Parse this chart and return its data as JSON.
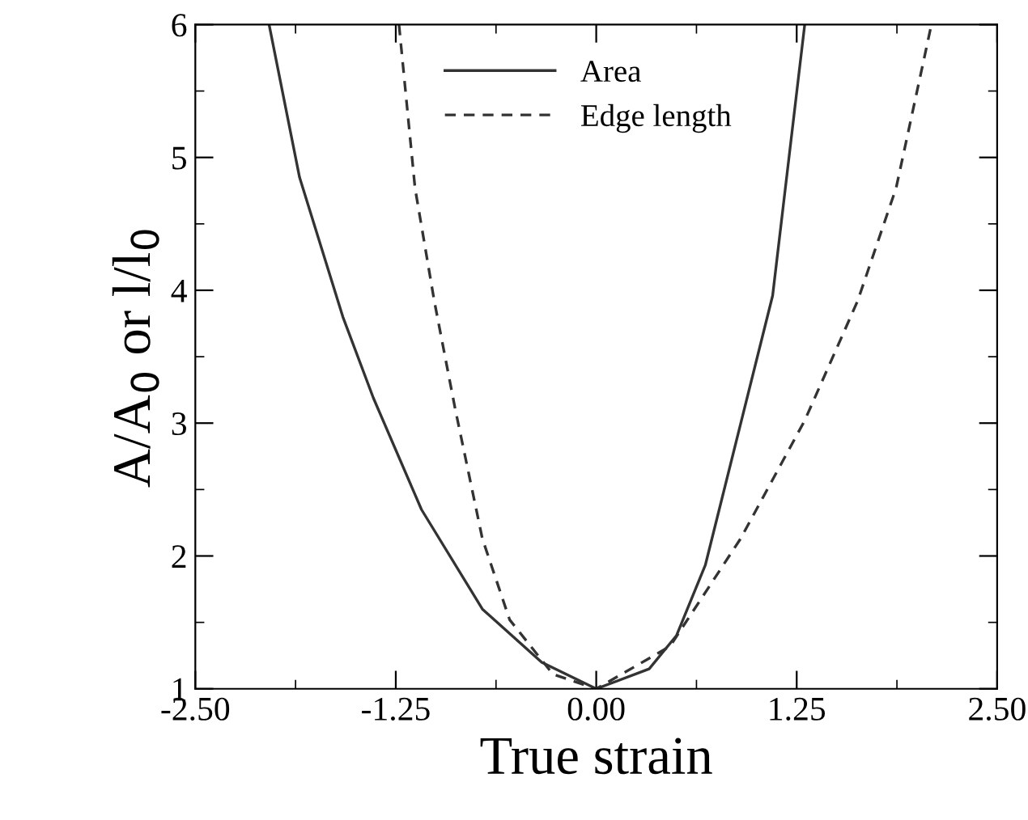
{
  "chart_data": {
    "type": "line",
    "xlabel": "True strain",
    "ylabel": "A/A$_{0}$ or l/l$_{0}$",
    "xlim": [
      -2.5,
      2.5
    ],
    "xticks": [
      {
        "value": -2.5,
        "label": "-2.50"
      },
      {
        "value": -1.25,
        "label": "-1.25"
      },
      {
        "value": 0,
        "label": "0.00"
      },
      {
        "value": 1.25,
        "label": "1.25"
      },
      {
        "value": 2.5,
        "label": "2.50"
      }
    ],
    "ylim": [
      1,
      6
    ],
    "yticks": [
      1,
      2,
      3,
      4,
      5,
      6
    ],
    "grid": false,
    "legend": "top",
    "marker": "none",
    "series": [
      {
        "name": "Area",
        "color": "#333333",
        "line_style": "solid",
        "x": [
          -2.04,
          -1.85,
          -1.58,
          -1.39,
          -1.09,
          -0.71,
          -0.34,
          0,
          0.33,
          0.5,
          0.68,
          1.1,
          1.3
        ],
        "values": [
          6,
          4.85,
          3.8,
          3.19,
          2.35,
          1.6,
          1.2,
          1,
          1.15,
          1.4,
          1.93,
          3.96,
          6
        ]
      },
      {
        "name": "Edge length",
        "color": "#333333",
        "line_style": "dashed",
        "x": [
          -1.23,
          -1.13,
          -1.01,
          -0.88,
          -0.71,
          -0.54,
          -0.27,
          0,
          0.46,
          0.9,
          1.3,
          1.63,
          1.87,
          2.09
        ],
        "values": [
          6,
          4.77,
          3.92,
          3.11,
          2.13,
          1.52,
          1.11,
          1,
          1.32,
          2.13,
          3.02,
          3.92,
          4.77,
          6
        ]
      }
    ]
  }
}
